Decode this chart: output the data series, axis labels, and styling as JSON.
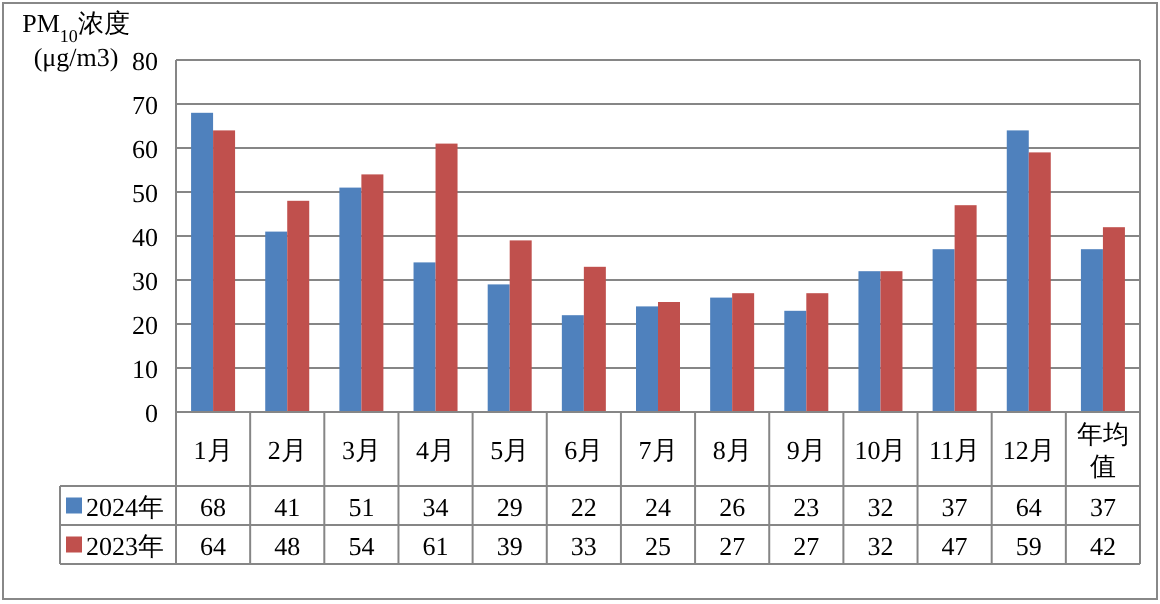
{
  "chart_data": {
    "type": "bar",
    "ylabel": "PM$_{10}$浓度\n(μg/m3)",
    "categories": [
      "1月",
      "2月",
      "3月",
      "4月",
      "5月",
      "6月",
      "7月",
      "8月",
      "9月",
      "10月",
      "11月",
      "12月",
      "年均值"
    ],
    "series": [
      {
        "name": "2024年",
        "color": "#4f81bd",
        "values": [
          68,
          41,
          51,
          34,
          29,
          22,
          24,
          26,
          23,
          32,
          37,
          64,
          37
        ]
      },
      {
        "name": "2023年",
        "color": "#c0504d",
        "values": [
          64,
          48,
          54,
          61,
          39,
          33,
          25,
          27,
          27,
          32,
          47,
          59,
          42
        ]
      }
    ],
    "ylim": [
      0,
      80
    ],
    "yticks": [
      0,
      10,
      20,
      30,
      40,
      50,
      60,
      70,
      80
    ],
    "grid": "y",
    "legend": "bottom",
    "data_labels": true
  }
}
